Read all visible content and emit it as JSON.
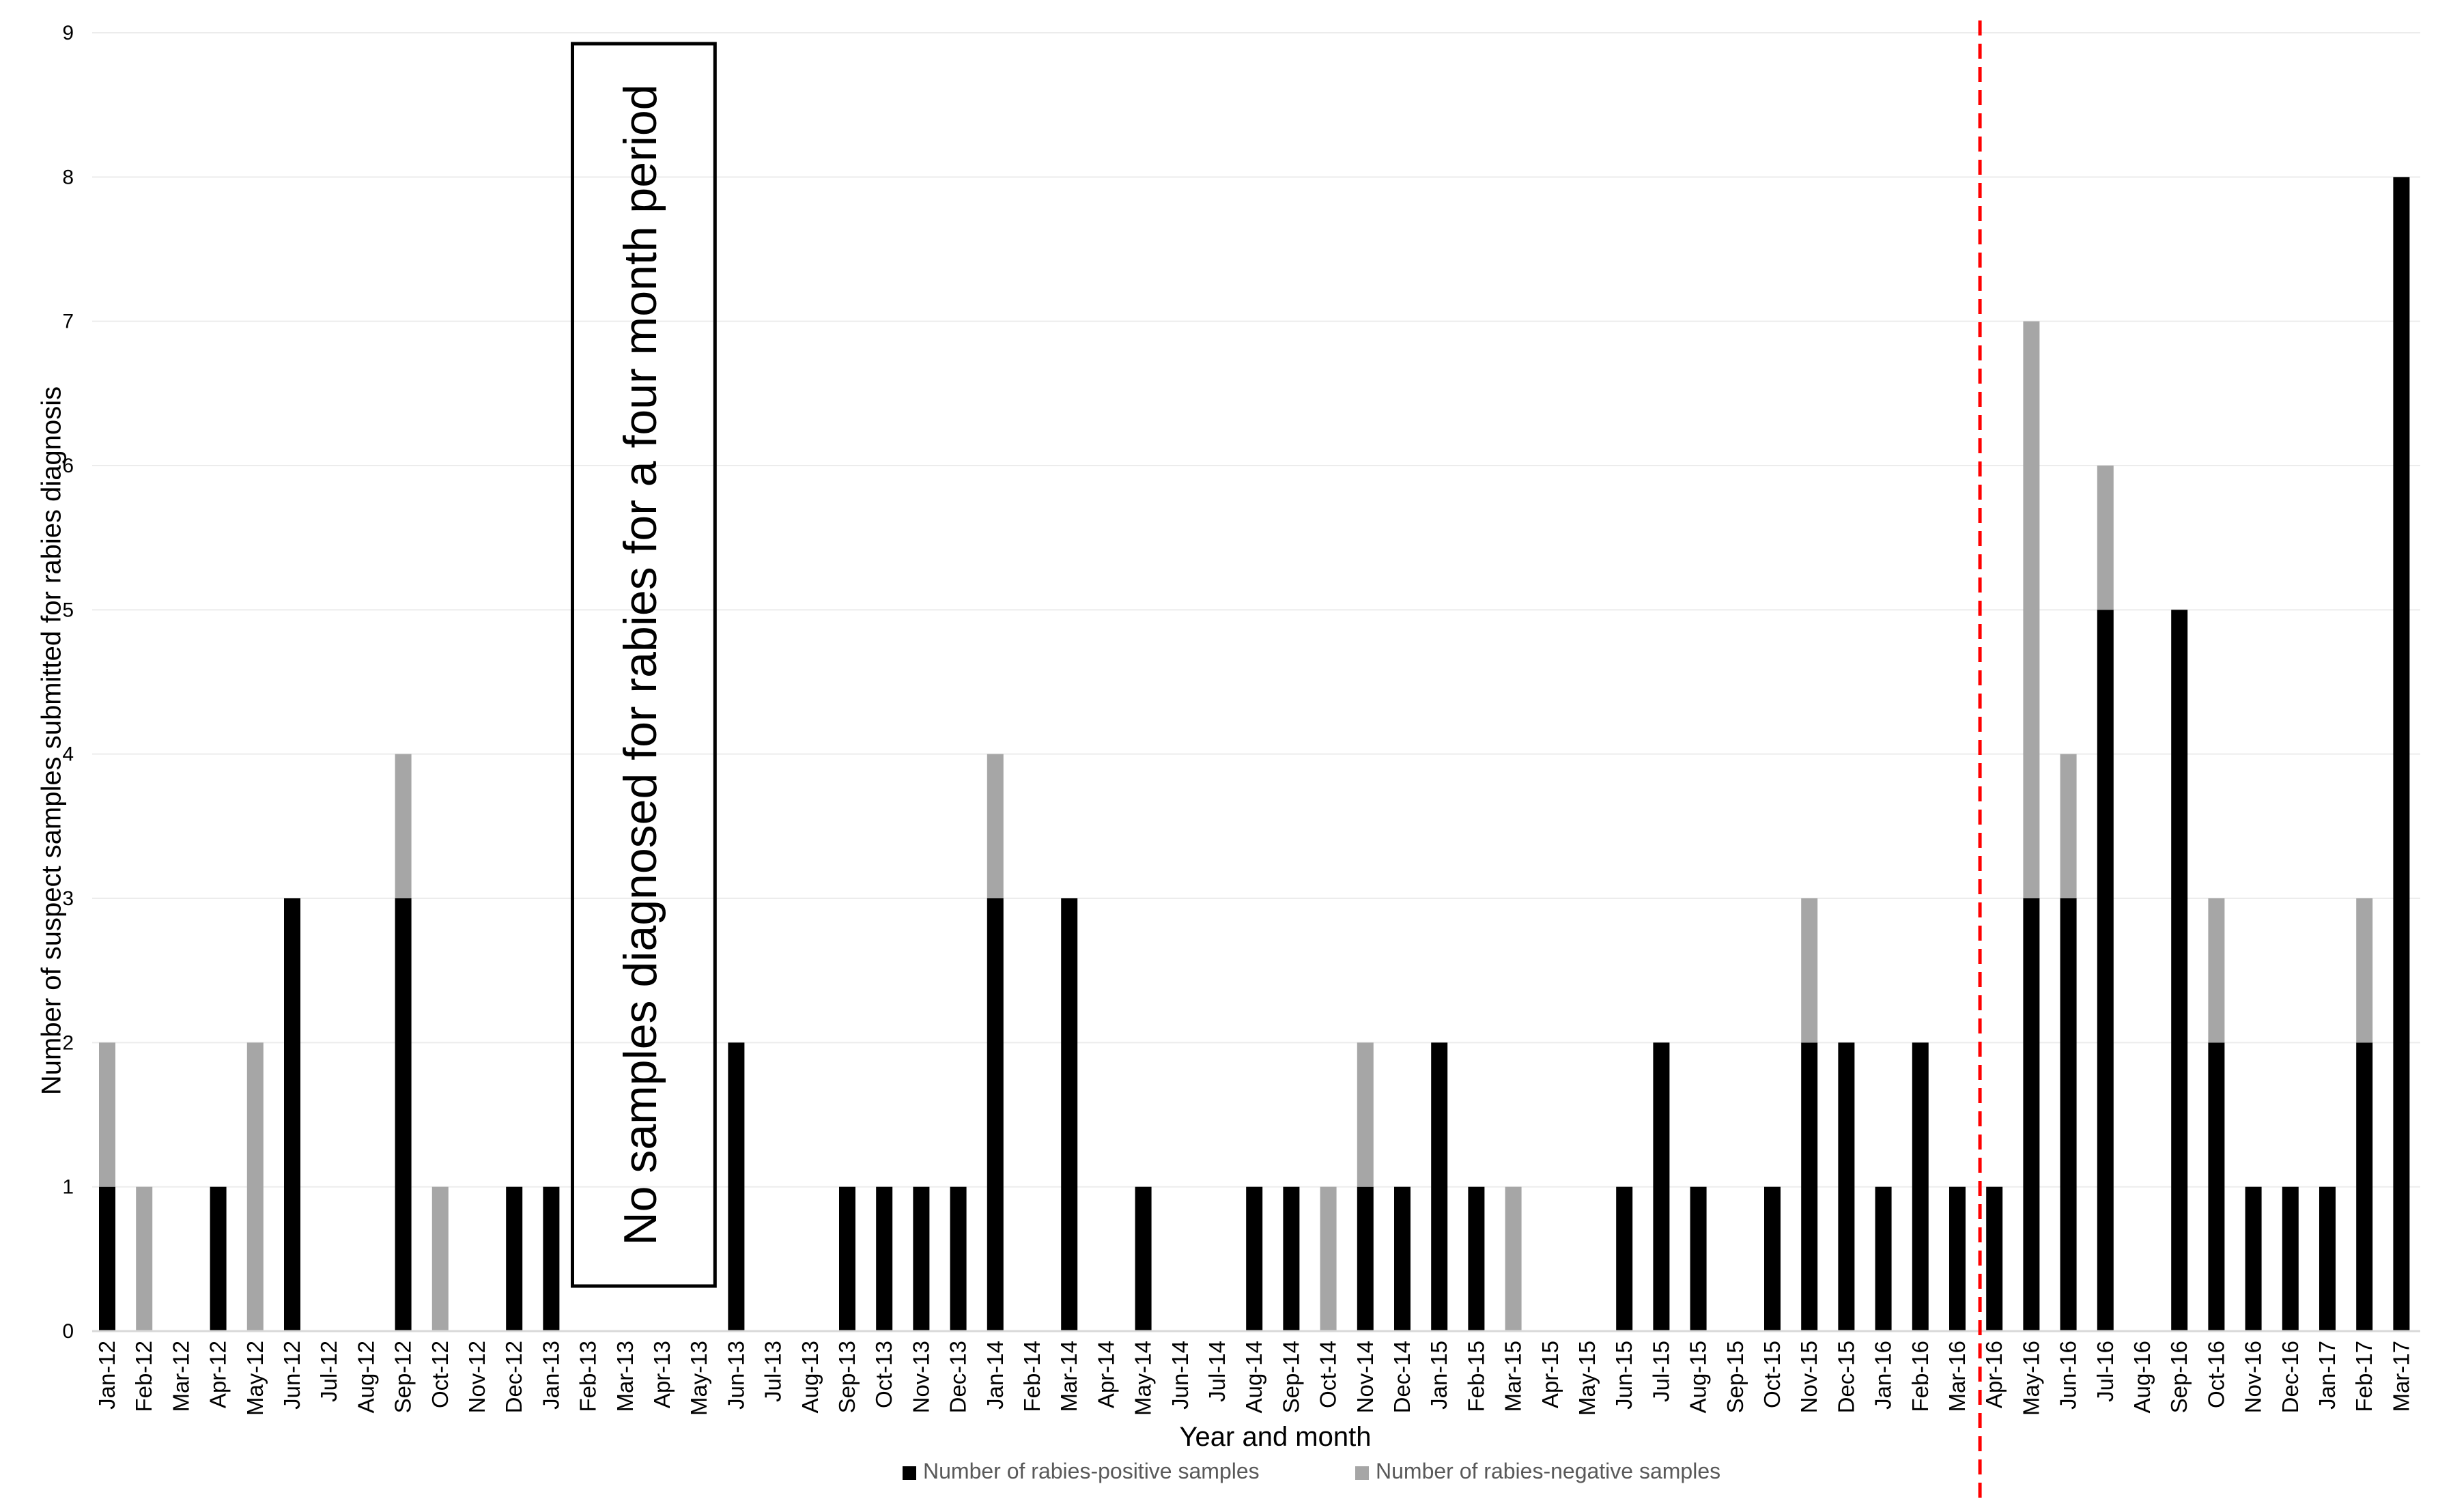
{
  "chart_data": {
    "type": "bar",
    "stacked": true,
    "title": "",
    "xlabel": "Year and month",
    "ylabel": "Number of suspect samples submitted for rabies diagnosis",
    "ylim": [
      0,
      9
    ],
    "yticks": [
      "0",
      "1",
      "2",
      "3",
      "4",
      "5",
      "6",
      "7",
      "8",
      "9"
    ],
    "grid": true,
    "legend_position": "bottom",
    "categories": [
      "Jan-12",
      "Feb-12",
      "Mar-12",
      "Apr-12",
      "May-12",
      "Jun-12",
      "Jul-12",
      "Aug-12",
      "Sep-12",
      "Oct-12",
      "Nov-12",
      "Dec-12",
      "Jan-13",
      "Feb-13",
      "Mar-13",
      "Apr-13",
      "May-13",
      "Jun-13",
      "Jul-13",
      "Aug-13",
      "Sep-13",
      "Oct-13",
      "Nov-13",
      "Dec-13",
      "Jan-14",
      "Feb-14",
      "Mar-14",
      "Apr-14",
      "May-14",
      "Jun-14",
      "Jul-14",
      "Aug-14",
      "Sep-14",
      "Oct-14",
      "Nov-14",
      "Dec-14",
      "Jan-15",
      "Feb-15",
      "Mar-15",
      "Apr-15",
      "May-15",
      "Jun-15",
      "Jul-15",
      "Aug-15",
      "Sep-15",
      "Oct-15",
      "Nov-15",
      "Dec-15",
      "Jan-16",
      "Feb-16",
      "Mar-16",
      "Apr-16",
      "May-16",
      "Jun-16",
      "Jul-16",
      "Aug-16",
      "Sep-16",
      "Oct-16",
      "Nov-16",
      "Dec-16",
      "Jan-17",
      "Feb-17",
      "Mar-17"
    ],
    "series": [
      {
        "name": "Number of rabies-positive samples",
        "color": "#000000",
        "values": [
          1,
          0,
          0,
          1,
          0,
          3,
          0,
          0,
          3,
          0,
          0,
          1,
          1,
          0,
          0,
          0,
          0,
          2,
          0,
          0,
          1,
          1,
          1,
          1,
          3,
          0,
          3,
          0,
          1,
          0,
          0,
          1,
          1,
          0,
          1,
          1,
          2,
          1,
          0,
          0,
          0,
          1,
          2,
          1,
          0,
          1,
          2,
          2,
          1,
          2,
          1,
          1,
          3,
          3,
          5,
          0,
          5,
          2,
          1,
          1,
          1,
          2,
          8
        ]
      },
      {
        "name": "Number of rabies-negative samples",
        "color": "#a6a6a6",
        "values": [
          1,
          1,
          0,
          0,
          2,
          0,
          0,
          0,
          1,
          1,
          0,
          0,
          0,
          0,
          0,
          0,
          0,
          0,
          0,
          0,
          0,
          0,
          0,
          0,
          1,
          0,
          0,
          0,
          0,
          0,
          0,
          0,
          0,
          1,
          1,
          0,
          0,
          0,
          1,
          0,
          0,
          0,
          0,
          0,
          0,
          0,
          1,
          0,
          0,
          0,
          0,
          0,
          4,
          1,
          1,
          0,
          0,
          1,
          0,
          0,
          0,
          1,
          0
        ]
      }
    ],
    "annotations": [
      {
        "text": "No samples diagnosed for rabies for a four month period",
        "from_category": "Feb-13",
        "to_category": "May-13"
      }
    ],
    "reference_line": {
      "between": [
        "Mar-16",
        "Apr-16"
      ],
      "color": "#ff0000",
      "style": "dashed"
    }
  }
}
